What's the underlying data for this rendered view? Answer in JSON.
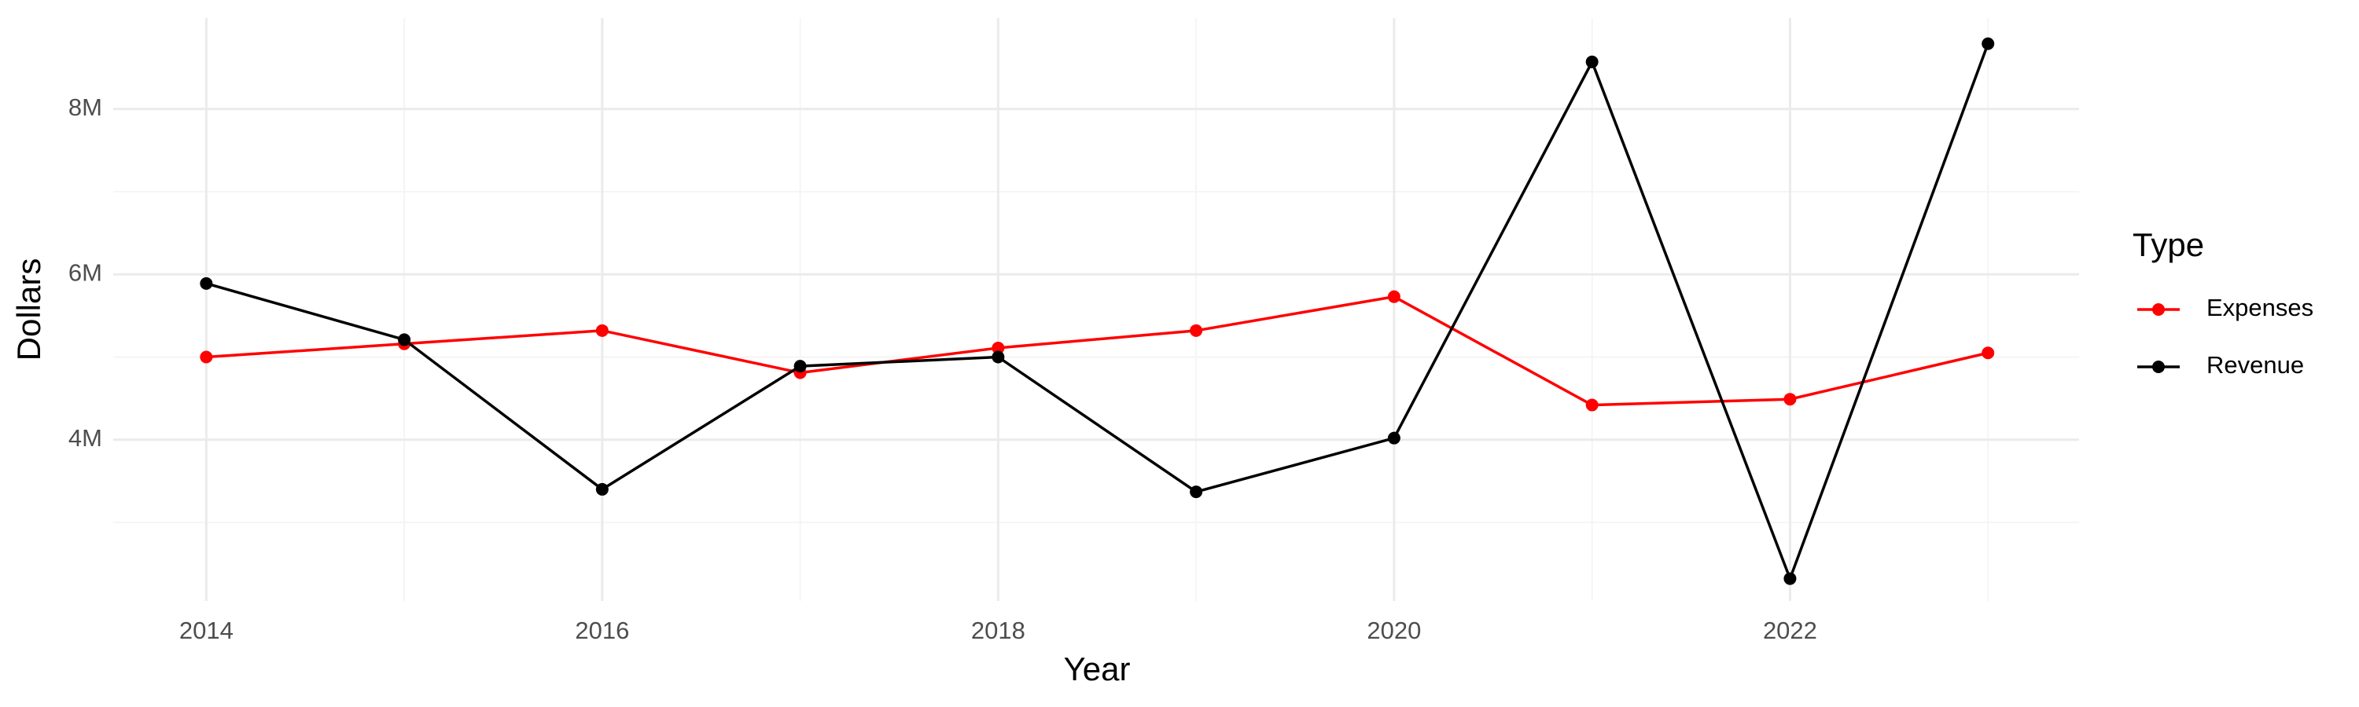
{
  "chart_data": {
    "type": "line",
    "x_label": "Year",
    "y_label": "Dollars",
    "legend_title": "Type",
    "legend_position": "right",
    "x": [
      2014,
      2015,
      2016,
      2017,
      2018,
      2019,
      2020,
      2021,
      2022,
      2023
    ],
    "series": [
      {
        "name": "Expenses",
        "color": "#ff0000",
        "values": [
          5000000,
          5160000,
          5320000,
          4810000,
          5110000,
          5320000,
          5730000,
          4420000,
          4490000,
          5050000
        ]
      },
      {
        "name": "Revenue",
        "color": "#000000",
        "values": [
          5890000,
          5210000,
          3400000,
          4890000,
          5000000,
          3370000,
          4020000,
          8570000,
          2320000,
          8790000
        ]
      }
    ],
    "xlim": [
      2013.53,
      2023.46
    ],
    "xticks": [
      2014,
      2016,
      2018,
      2020,
      2022
    ],
    "minor_xticks": [
      2015,
      2017,
      2019,
      2021,
      2023
    ],
    "ylim": [
      2050000,
      9100000
    ],
    "yticks": [
      {
        "value": 4000000,
        "label": "4M"
      },
      {
        "value": 6000000,
        "label": "6M"
      },
      {
        "value": 8000000,
        "label": "8M"
      }
    ],
    "minor_yticks": [
      3000000,
      5000000,
      7000000
    ],
    "grid": true
  }
}
